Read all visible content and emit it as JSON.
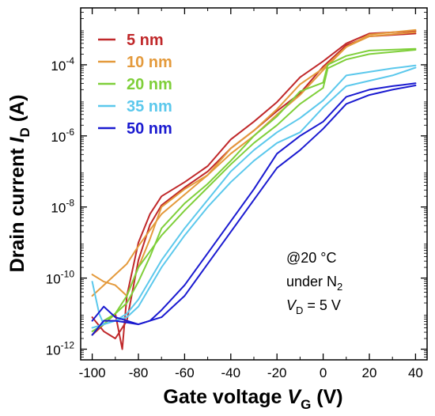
{
  "chart_data": {
    "type": "line",
    "xlabel_main": "Gate voltage ",
    "xlabel_var": "V",
    "xlabel_sub": "G",
    "xlabel_unit": " (V)",
    "ylabel_main": "Drain current ",
    "ylabel_var": "I",
    "ylabel_sub": "D",
    "ylabel_unit": " (A)",
    "xlim": [
      -105,
      45
    ],
    "ylim": [
      -12.3,
      -2.4
    ],
    "y_scale": "log",
    "x_ticks": [
      -100,
      -80,
      -60,
      -40,
      -20,
      0,
      20,
      40
    ],
    "x_tick_labels": [
      "-100",
      "-80",
      "-60",
      "-40",
      "-20",
      "0",
      "20",
      "40"
    ],
    "y_ticks": [
      -12,
      -10,
      -8,
      -6,
      -4
    ],
    "y_tick_labels": [
      {
        "base": "10",
        "exp": "-12"
      },
      {
        "base": "10",
        "exp": "-10"
      },
      {
        "base": "10",
        "exp": "-8"
      },
      {
        "base": "10",
        "exp": "-6"
      },
      {
        "base": "10",
        "exp": "-4"
      }
    ],
    "legend_position": "top-left",
    "annotation": {
      "line1": "@20 °C",
      "line2_main": "under N",
      "line2_sub": "2",
      "line3_var": "V",
      "line3_sub": "D",
      "line3_rest": " = 5 V"
    },
    "series": [
      {
        "name": "5 nm",
        "color": "#c0282a",
        "forward": [
          [
            -100,
            -11.6
          ],
          [
            -95,
            -11.3
          ],
          [
            -90,
            -11.0
          ],
          [
            -87,
            -12
          ],
          [
            -85,
            -10.5
          ],
          [
            -80,
            -9
          ],
          [
            -75,
            -8.2
          ],
          [
            -70,
            -7.7
          ],
          [
            -60,
            -7.3
          ],
          [
            -50,
            -6.85
          ],
          [
            -40,
            -6.1
          ],
          [
            -30,
            -5.6
          ],
          [
            -20,
            -5.05
          ],
          [
            -10,
            -4.35
          ],
          [
            0,
            -3.9
          ],
          [
            10,
            -3.4
          ],
          [
            20,
            -3.12
          ],
          [
            40,
            -3.05
          ]
        ],
        "reverse": [
          [
            40,
            -3.12
          ],
          [
            20,
            -3.2
          ],
          [
            10,
            -3.45
          ],
          [
            0,
            -4.05
          ],
          [
            -10,
            -4.8
          ],
          [
            -20,
            -5.3
          ],
          [
            -30,
            -5.85
          ],
          [
            -40,
            -6.35
          ],
          [
            -50,
            -7.0
          ],
          [
            -60,
            -7.45
          ],
          [
            -70,
            -7.95
          ],
          [
            -75,
            -8.5
          ],
          [
            -80,
            -9.5
          ],
          [
            -85,
            -11.2
          ],
          [
            -90,
            -11.7
          ],
          [
            -95,
            -11.5
          ],
          [
            -100,
            -11.1
          ]
        ]
      },
      {
        "name": "10 nm",
        "color": "#e49a3c",
        "forward": [
          [
            -100,
            -9.9
          ],
          [
            -95,
            -10.1
          ],
          [
            -90,
            -10.2
          ],
          [
            -85,
            -10.5
          ],
          [
            -80,
            -9.7
          ],
          [
            -75,
            -8.9
          ],
          [
            -70,
            -8.0
          ],
          [
            -60,
            -7.5
          ],
          [
            -50,
            -7.1
          ],
          [
            -40,
            -6.35
          ],
          [
            -30,
            -5.85
          ],
          [
            -20,
            -5.25
          ],
          [
            -10,
            -4.55
          ],
          [
            0,
            -4.1
          ],
          [
            10,
            -3.5
          ],
          [
            20,
            -3.15
          ],
          [
            40,
            -3.02
          ]
        ],
        "reverse": [
          [
            40,
            -3.08
          ],
          [
            20,
            -3.2
          ],
          [
            10,
            -3.5
          ],
          [
            0,
            -4.15
          ],
          [
            -10,
            -4.85
          ],
          [
            -20,
            -5.4
          ],
          [
            -30,
            -6.0
          ],
          [
            -40,
            -6.5
          ],
          [
            -50,
            -7.1
          ],
          [
            -60,
            -7.65
          ],
          [
            -70,
            -8.2
          ],
          [
            -80,
            -9.1
          ],
          [
            -85,
            -9.6
          ],
          [
            -90,
            -9.9
          ],
          [
            -95,
            -10.2
          ],
          [
            -100,
            -10.5
          ]
        ]
      },
      {
        "name": "20 nm",
        "color": "#7fcf3a",
        "forward": [
          [
            -100,
            -11.6
          ],
          [
            -95,
            -11.2
          ],
          [
            -90,
            -11.0
          ],
          [
            -85,
            -10.7
          ],
          [
            -80,
            -10.1
          ],
          [
            -75,
            -9.4
          ],
          [
            -70,
            -8.6
          ],
          [
            -60,
            -7.9
          ],
          [
            -50,
            -7.35
          ],
          [
            -40,
            -6.7
          ],
          [
            -30,
            -6.0
          ],
          [
            -20,
            -5.45
          ],
          [
            -10,
            -4.75
          ],
          [
            0,
            -4.5
          ],
          [
            2,
            -4.0
          ],
          [
            10,
            -3.75
          ],
          [
            20,
            -3.6
          ],
          [
            40,
            -3.55
          ]
        ],
        "reverse": [
          [
            40,
            -3.58
          ],
          [
            20,
            -3.7
          ],
          [
            10,
            -3.85
          ],
          [
            2,
            -4.1
          ],
          [
            0,
            -4.65
          ],
          [
            -10,
            -5.1
          ],
          [
            -20,
            -5.7
          ],
          [
            -30,
            -6.2
          ],
          [
            -40,
            -6.8
          ],
          [
            -50,
            -7.45
          ],
          [
            -60,
            -8.1
          ],
          [
            -70,
            -8.8
          ],
          [
            -80,
            -9.7
          ],
          [
            -85,
            -10.5
          ],
          [
            -90,
            -11.0
          ],
          [
            -95,
            -11.3
          ],
          [
            -100,
            -11.5
          ]
        ]
      },
      {
        "name": "35 nm",
        "color": "#5bc8ec",
        "forward": [
          [
            -100,
            -10.1
          ],
          [
            -97,
            -11.0
          ],
          [
            -95,
            -11.3
          ],
          [
            -90,
            -11.2
          ],
          [
            -85,
            -11.0
          ],
          [
            -80,
            -10.6
          ],
          [
            -70,
            -9.5
          ],
          [
            -60,
            -8.6
          ],
          [
            -50,
            -7.8
          ],
          [
            -40,
            -7.0
          ],
          [
            -30,
            -6.4
          ],
          [
            -20,
            -5.9
          ],
          [
            -10,
            -5.5
          ],
          [
            0,
            -5.0
          ],
          [
            10,
            -4.3
          ],
          [
            20,
            -4.2
          ],
          [
            30,
            -4.1
          ],
          [
            40,
            -4.02
          ]
        ],
        "reverse": [
          [
            40,
            -4.08
          ],
          [
            30,
            -4.3
          ],
          [
            20,
            -4.45
          ],
          [
            10,
            -4.6
          ],
          [
            0,
            -5.2
          ],
          [
            -10,
            -5.9
          ],
          [
            -20,
            -6.2
          ],
          [
            -30,
            -6.7
          ],
          [
            -40,
            -7.3
          ],
          [
            -50,
            -8.0
          ],
          [
            -60,
            -8.8
          ],
          [
            -70,
            -9.7
          ],
          [
            -80,
            -10.8
          ],
          [
            -85,
            -11.1
          ],
          [
            -90,
            -11.2
          ],
          [
            -95,
            -11.3
          ],
          [
            -100,
            -11.4
          ]
        ]
      },
      {
        "name": "50 nm",
        "color": "#1a1ad0",
        "forward": [
          [
            -100,
            -11.6
          ],
          [
            -95,
            -11.2
          ],
          [
            -90,
            -11.2
          ],
          [
            -85,
            -11.25
          ],
          [
            -80,
            -11.3
          ],
          [
            -75,
            -11.2
          ],
          [
            -70,
            -10.9
          ],
          [
            -60,
            -10.2
          ],
          [
            -50,
            -9.3
          ],
          [
            -40,
            -8.4
          ],
          [
            -30,
            -7.5
          ],
          [
            -20,
            -6.5
          ],
          [
            -10,
            -6.0
          ],
          [
            0,
            -5.6
          ],
          [
            10,
            -4.9
          ],
          [
            20,
            -4.7
          ],
          [
            30,
            -4.6
          ],
          [
            40,
            -4.52
          ]
        ],
        "reverse": [
          [
            40,
            -4.58
          ],
          [
            30,
            -4.7
          ],
          [
            20,
            -4.85
          ],
          [
            10,
            -5.1
          ],
          [
            0,
            -5.8
          ],
          [
            -10,
            -6.4
          ],
          [
            -20,
            -6.9
          ],
          [
            -30,
            -7.8
          ],
          [
            -40,
            -8.7
          ],
          [
            -50,
            -9.6
          ],
          [
            -60,
            -10.5
          ],
          [
            -70,
            -11.1
          ],
          [
            -80,
            -11.3
          ],
          [
            -90,
            -11.1
          ],
          [
            -95,
            -10.8
          ],
          [
            -100,
            -11.2
          ]
        ]
      }
    ]
  }
}
